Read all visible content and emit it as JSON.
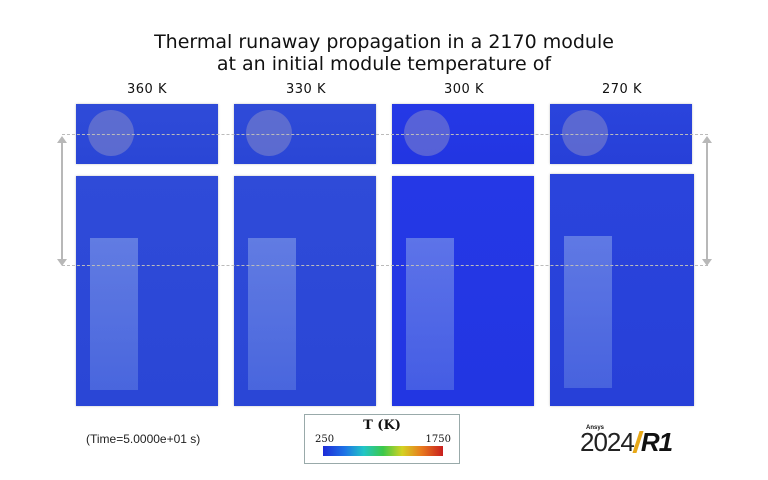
{
  "title": {
    "line1": "Thermal runaway propagation in a 2170 module",
    "line2": "at an initial module temperature of"
  },
  "columns": [
    {
      "label": "360 K"
    },
    {
      "label": "330 K"
    },
    {
      "label": "300 K"
    },
    {
      "label": "270 K"
    }
  ],
  "time_label": "(Time=5.0000e+01 s)",
  "legend": {
    "title": "T (K)",
    "min": "250",
    "max": "1750"
  },
  "logo": {
    "brand": "Ansys",
    "year": "2024",
    "release": "R1",
    "accent_color": "#e8a817"
  },
  "colors": {
    "field_blue": "#2a46d6",
    "dash": "#bbbbbb"
  }
}
